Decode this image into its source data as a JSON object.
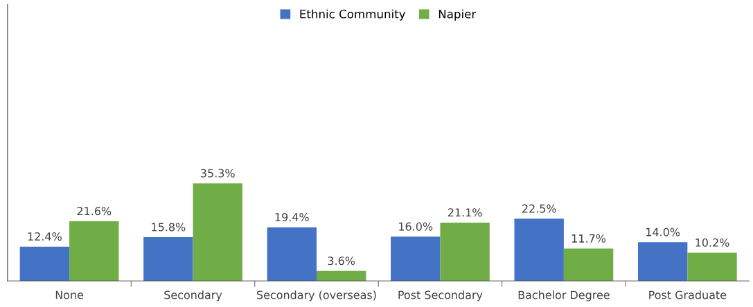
{
  "chart_data": {
    "type": "bar",
    "categories": [
      "None",
      "Secondary",
      "Secondary (overseas)",
      "Post Secondary",
      "Bachelor Degree",
      "Post Graduate"
    ],
    "series": [
      {
        "name": "Ethnic Community",
        "color": "#4472c4",
        "values": [
          12.4,
          15.8,
          19.4,
          16.0,
          22.5,
          14.0
        ],
        "value_labels": [
          "12.4%",
          "15.8%",
          "19.4%",
          "16.0%",
          "22.5%",
          "14.0%"
        ]
      },
      {
        "name": "Napier",
        "color": "#70ad47",
        "values": [
          21.6,
          35.3,
          3.6,
          21.1,
          11.7,
          10.2
        ],
        "value_labels": [
          "21.6%",
          "35.3%",
          "3.6%",
          "21.1%",
          "11.7%",
          "10.2%"
        ]
      }
    ],
    "ylim": [
      0,
      100
    ],
    "tick_labels": "x",
    "legend": "top",
    "grid": false
  }
}
